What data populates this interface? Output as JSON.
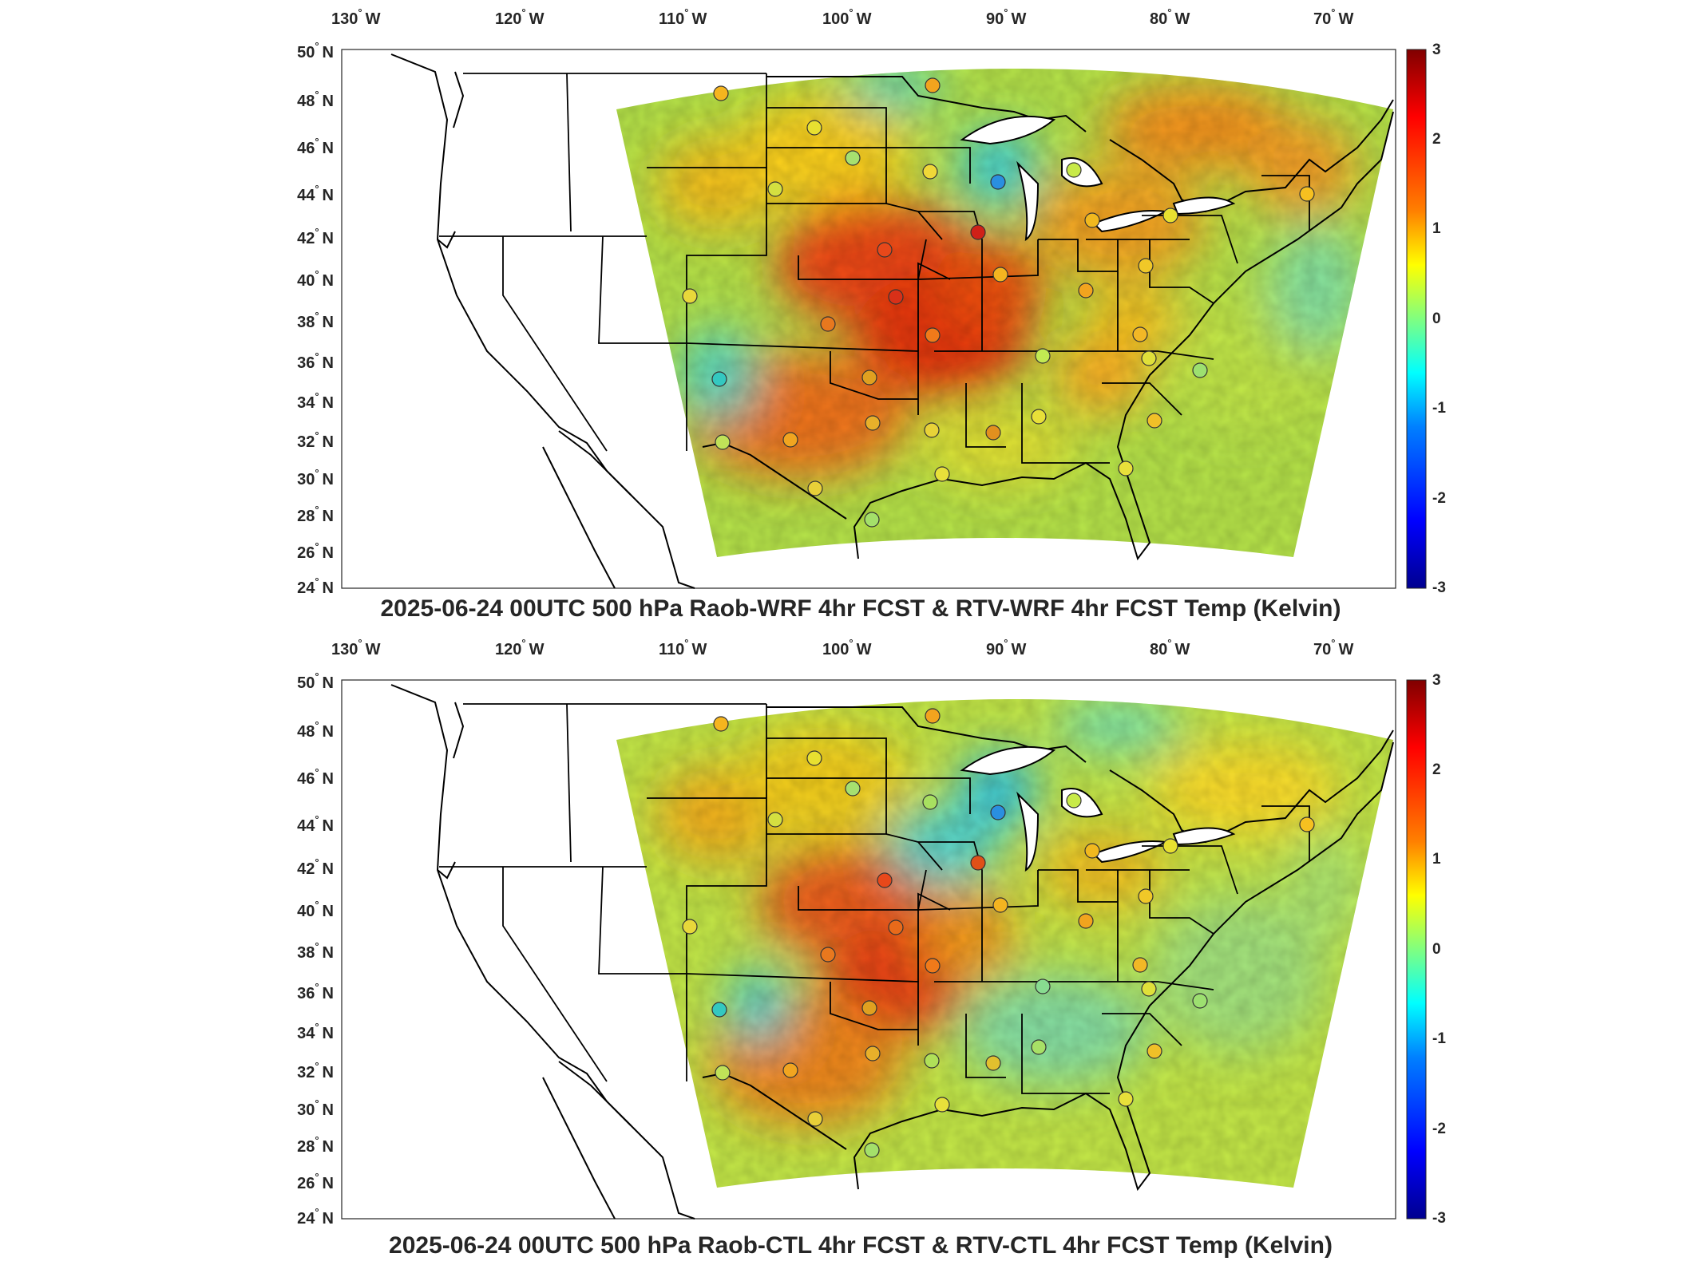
{
  "colorbar": {
    "ticks": [
      "3",
      "2",
      "1",
      "0",
      "-1",
      "-2",
      "-3"
    ],
    "min": -3,
    "max": 3,
    "colormap": "jet",
    "colors": [
      "#00008f",
      "#0000ff",
      "#0080ff",
      "#00ffff",
      "#80ff80",
      "#ffff00",
      "#ff8000",
      "#ff0000",
      "#800000"
    ]
  },
  "axes": {
    "lon_labels": [
      "130",
      "120",
      "110",
      "100",
      "90",
      "80",
      "70"
    ],
    "lon_suffix": "W",
    "lat_labels": [
      "50",
      "48",
      "46",
      "44",
      "42",
      "40",
      "38",
      "36",
      "34",
      "32",
      "30",
      "28",
      "26",
      "24"
    ],
    "lat_suffix": "N",
    "degree_symbol": "°"
  },
  "panels": [
    {
      "title": "2025-06-24 00UTC 500 hPa Raob-WRF 4hr FCST & RTV-WRF 4hr FCST Temp (Kelvin)",
      "field_variant": "wrf"
    },
    {
      "title": "2025-06-24 00UTC 500 hPa Raob-CTL 4hr FCST & RTV-CTL 4hr FCST Temp (Kelvin)",
      "field_variant": "ctl"
    }
  ]
}
